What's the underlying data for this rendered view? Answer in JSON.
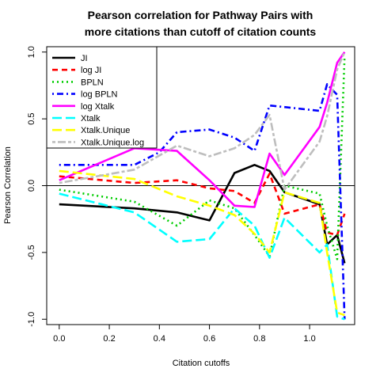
{
  "chart_data": {
    "type": "line",
    "title": "Pearson correlation for Pathway Pairs with more citations than cutoff of citation counts",
    "title_lines": [
      "Pearson correlation for Pathway Pairs with",
      "more citations than cutoff of citation counts"
    ],
    "xlabel": "Citation cutoffs",
    "ylabel": "Pearson Correlation",
    "xlim": [
      -0.05,
      1.18
    ],
    "ylim": [
      -1.04,
      1.04
    ],
    "x_ticks": [
      0.0,
      0.2,
      0.4,
      0.6,
      0.8,
      1.0
    ],
    "x_tick_labels": [
      "0.0",
      "0.2",
      "0.4",
      "0.6",
      "0.8",
      "1.0"
    ],
    "y_ticks": [
      -1.0,
      -0.5,
      0.0,
      0.5,
      1.0
    ],
    "y_tick_labels": [
      "-1.0",
      "-0.5",
      "0.0",
      "0.5",
      "1.0"
    ],
    "reference_line_y": 0,
    "legend_position": "top-left",
    "series": [
      {
        "name": "JI",
        "color": "#000000",
        "dash": "solid",
        "points": [
          [
            0.0,
            -0.14
          ],
          [
            0.3,
            -0.17
          ],
          [
            0.47,
            -0.2
          ],
          [
            0.6,
            -0.26
          ],
          [
            0.7,
            0.095
          ],
          [
            0.78,
            0.155
          ],
          [
            0.84,
            0.11
          ],
          [
            0.9,
            -0.05
          ],
          [
            1.04,
            -0.14
          ],
          [
            1.07,
            -0.44
          ],
          [
            1.11,
            -0.37
          ],
          [
            1.14,
            -0.58
          ]
        ]
      },
      {
        "name": "log JI",
        "color": "#ff0000",
        "dash": "dashed",
        "points": [
          [
            0.0,
            0.07
          ],
          [
            0.3,
            0.02
          ],
          [
            0.47,
            0.04
          ],
          [
            0.6,
            -0.02
          ],
          [
            0.7,
            -0.04
          ],
          [
            0.78,
            -0.13
          ],
          [
            0.84,
            0.09
          ],
          [
            0.9,
            -0.21
          ],
          [
            1.04,
            -0.14
          ],
          [
            1.07,
            -0.35
          ],
          [
            1.11,
            -0.37
          ],
          [
            1.14,
            -0.21
          ]
        ]
      },
      {
        "name": "BPLN",
        "color": "#00cd00",
        "dash": "dotted",
        "points": [
          [
            0.0,
            -0.03
          ],
          [
            0.3,
            -0.12
          ],
          [
            0.47,
            -0.3
          ],
          [
            0.6,
            -0.11
          ],
          [
            0.7,
            -0.17
          ],
          [
            0.78,
            -0.37
          ],
          [
            0.84,
            -0.53
          ],
          [
            0.9,
            0.0
          ],
          [
            1.04,
            -0.06
          ],
          [
            1.07,
            -0.3
          ],
          [
            1.11,
            -0.55
          ],
          [
            1.14,
            0.97
          ]
        ]
      },
      {
        "name": "log BPLN",
        "color": "#0000ff",
        "dash": "dashdot",
        "points": [
          [
            0.0,
            0.155
          ],
          [
            0.3,
            0.155
          ],
          [
            0.4,
            0.25
          ],
          [
            0.47,
            0.4
          ],
          [
            0.6,
            0.42
          ],
          [
            0.7,
            0.36
          ],
          [
            0.78,
            0.26
          ],
          [
            0.84,
            0.6
          ],
          [
            1.04,
            0.56
          ],
          [
            1.07,
            0.76
          ],
          [
            1.11,
            0.68
          ],
          [
            1.14,
            -1.0
          ]
        ]
      },
      {
        "name": "log Xtalk",
        "color": "#ff00ff",
        "dash": "solid",
        "points": [
          [
            0.0,
            0.04
          ],
          [
            0.3,
            0.28
          ],
          [
            0.47,
            0.26
          ],
          [
            0.6,
            0.04
          ],
          [
            0.7,
            -0.15
          ],
          [
            0.78,
            -0.16
          ],
          [
            0.84,
            0.24
          ],
          [
            0.9,
            0.08
          ],
          [
            1.04,
            0.44
          ],
          [
            1.07,
            0.62
          ],
          [
            1.11,
            0.92
          ],
          [
            1.14,
            1.0
          ]
        ]
      },
      {
        "name": "Xtalk",
        "color": "#00ffff",
        "dash": "longdash",
        "points": [
          [
            0.0,
            -0.06
          ],
          [
            0.3,
            -0.2
          ],
          [
            0.47,
            -0.42
          ],
          [
            0.6,
            -0.4
          ],
          [
            0.7,
            -0.17
          ],
          [
            0.78,
            -0.3
          ],
          [
            0.84,
            -0.54
          ],
          [
            0.9,
            -0.24
          ],
          [
            1.04,
            -0.5
          ],
          [
            1.07,
            -0.44
          ],
          [
            1.11,
            -0.98
          ],
          [
            1.14,
            -1.0
          ]
        ]
      },
      {
        "name": "Xtalk.Unique",
        "color": "#ffff00",
        "dash": "longdash",
        "points": [
          [
            0.0,
            0.11
          ],
          [
            0.3,
            0.05
          ],
          [
            0.47,
            -0.08
          ],
          [
            0.6,
            -0.15
          ],
          [
            0.7,
            -0.22
          ],
          [
            0.78,
            -0.36
          ],
          [
            0.84,
            -0.5
          ],
          [
            0.9,
            -0.05
          ],
          [
            1.04,
            -0.13
          ],
          [
            1.07,
            -0.5
          ],
          [
            1.11,
            -0.95
          ],
          [
            1.14,
            -0.97
          ]
        ]
      },
      {
        "name": "Xtalk.Unique.log",
        "color": "#bebebe",
        "dash": "twodash",
        "points": [
          [
            0.0,
            0.02
          ],
          [
            0.3,
            0.12
          ],
          [
            0.47,
            0.3
          ],
          [
            0.6,
            0.22
          ],
          [
            0.7,
            0.28
          ],
          [
            0.78,
            0.38
          ],
          [
            0.84,
            0.53
          ],
          [
            0.9,
            -0.03
          ],
          [
            1.04,
            0.33
          ],
          [
            1.07,
            0.52
          ],
          [
            1.11,
            0.87
          ],
          [
            1.14,
            1.0
          ]
        ]
      }
    ]
  }
}
